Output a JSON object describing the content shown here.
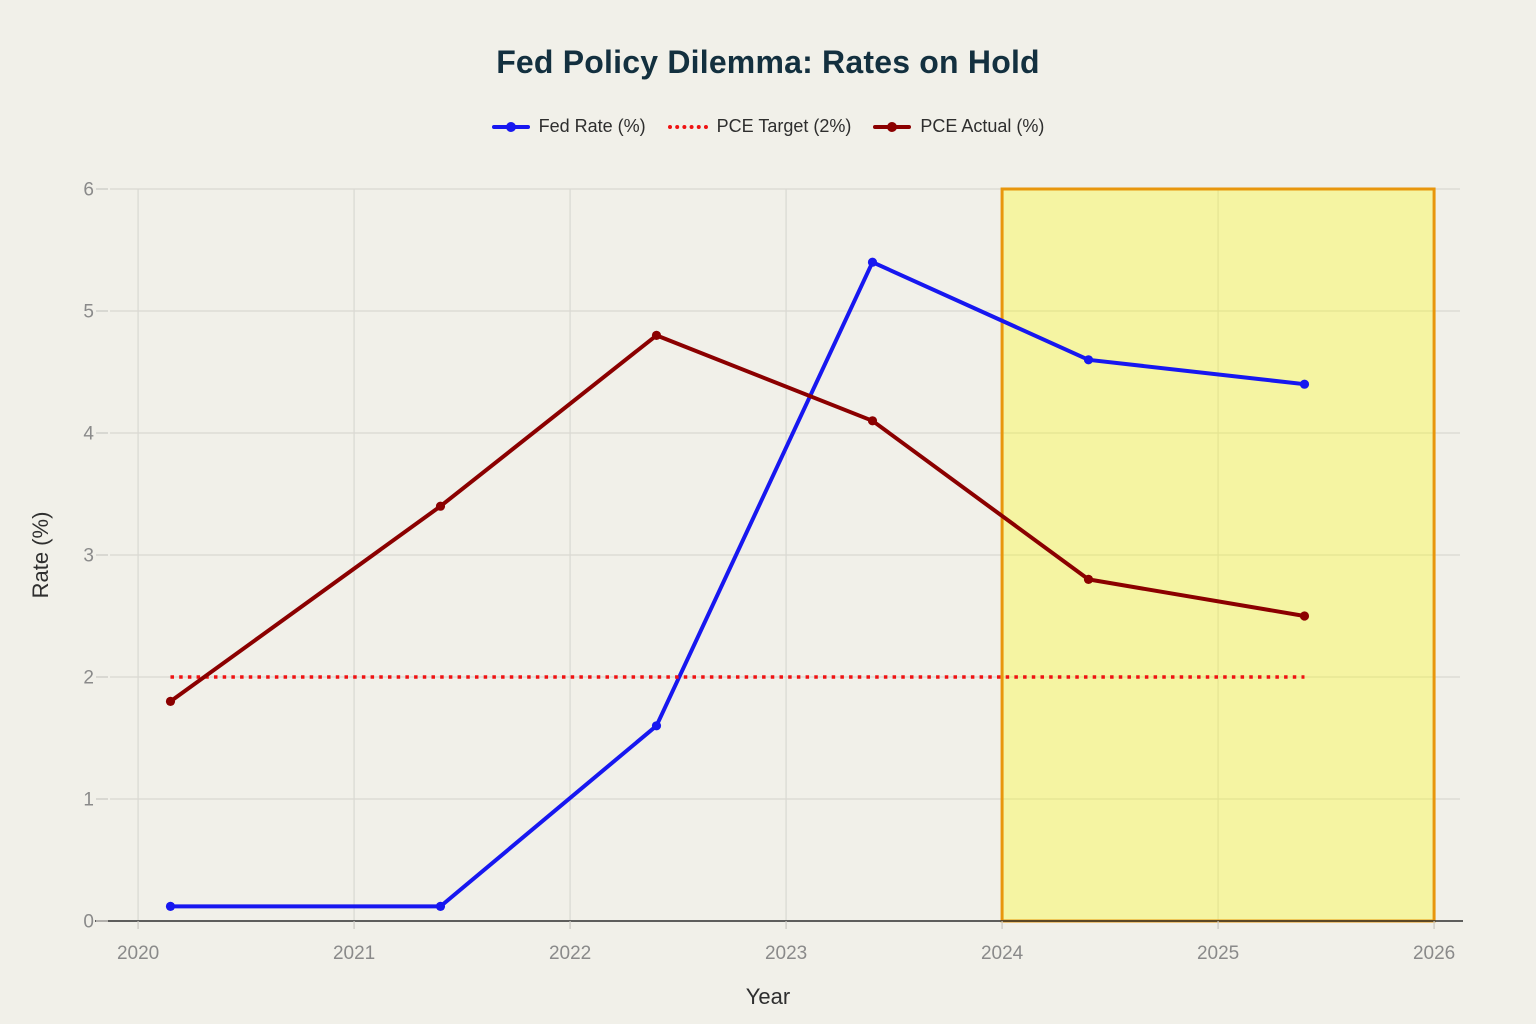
{
  "chart_data": {
    "type": "line",
    "title": "Fed Policy Dilemma: Rates on Hold",
    "xlabel": "Year",
    "ylabel": "Rate (%)",
    "x": [
      2020.15,
      2021.4,
      2022.4,
      2023.4,
      2024.4,
      2025.4
    ],
    "series": [
      {
        "name": "Fed Rate (%)",
        "color": "#1717f0",
        "dash": "solid",
        "markers": true,
        "width": 4,
        "values": [
          0.12,
          0.12,
          1.6,
          5.4,
          4.6,
          4.4
        ]
      },
      {
        "name": "PCE Target (2%)",
        "color": "#ef1212",
        "dash": "dot",
        "markers": false,
        "width": 3.4,
        "values": [
          2,
          2,
          2,
          2,
          2,
          2
        ]
      },
      {
        "name": "PCE Actual (%)",
        "color": "#8b0000",
        "dash": "solid",
        "markers": true,
        "width": 4,
        "values": [
          1.8,
          3.4,
          4.8,
          4.1,
          2.8,
          2.5
        ]
      }
    ],
    "x_ticks": [
      2020,
      2021,
      2022,
      2023,
      2024,
      2025,
      2026
    ],
    "y_ticks": [
      0,
      1,
      2,
      3,
      4,
      5,
      6
    ],
    "xlim": [
      2019.87,
      2026.12
    ],
    "ylim": [
      0,
      6
    ],
    "grid": true,
    "legend_position": "top-center",
    "highlight_region": {
      "x0": 2024,
      "x1": 2026,
      "fill_rgba": "rgba(255,255,0,0.30)",
      "border_color": "#e8960c",
      "border_width": 3
    }
  },
  "legend": {
    "items": [
      {
        "label": "Fed Rate (%)",
        "color": "#1717f0",
        "style": "line-marker",
        "key": "fed-rate"
      },
      {
        "label": "PCE Target (2%)",
        "color": "#ef1212",
        "style": "dotted",
        "key": "pce-target"
      },
      {
        "label": "PCE Actual (%)",
        "color": "#8b0000",
        "style": "line-marker",
        "key": "pce-actual"
      }
    ]
  },
  "colors": {
    "background": "#f1f0e9",
    "gridline": "#d9d8d2",
    "axis_line": "#2d2d2d",
    "tick_label": "#8a8a8a",
    "axis_title": "#2f2f2f",
    "title": "#13303f"
  }
}
